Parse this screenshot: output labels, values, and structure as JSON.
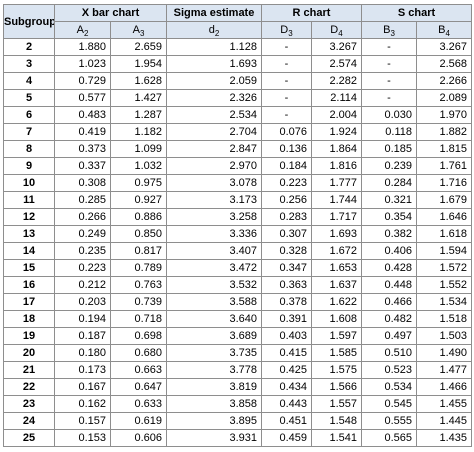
{
  "header": {
    "subgroup": "Subgroup",
    "groups": [
      {
        "label": "X bar chart",
        "span": 2
      },
      {
        "label": "Sigma estimate",
        "span": 1
      },
      {
        "label": "R chart",
        "span": 2
      },
      {
        "label": "S chart",
        "span": 2
      }
    ],
    "constants": [
      {
        "letter": "A",
        "sub": "2"
      },
      {
        "letter": "A",
        "sub": "3"
      },
      {
        "letter": "d",
        "sub": "2"
      },
      {
        "letter": "D",
        "sub": "3"
      },
      {
        "letter": "D",
        "sub": "4"
      },
      {
        "letter": "B",
        "sub": "3"
      },
      {
        "letter": "B",
        "sub": "4"
      }
    ]
  },
  "rows": [
    [
      "2",
      "1.880",
      "2.659",
      "1.128",
      "-",
      "3.267",
      "-",
      "3.267"
    ],
    [
      "3",
      "1.023",
      "1.954",
      "1.693",
      "-",
      "2.574",
      "-",
      "2.568"
    ],
    [
      "4",
      "0.729",
      "1.628",
      "2.059",
      "-",
      "2.282",
      "-",
      "2.266"
    ],
    [
      "5",
      "0.577",
      "1.427",
      "2.326",
      "-",
      "2.114",
      "-",
      "2.089"
    ],
    [
      "6",
      "0.483",
      "1.287",
      "2.534",
      "-",
      "2.004",
      "0.030",
      "1.970"
    ],
    [
      "7",
      "0.419",
      "1.182",
      "2.704",
      "0.076",
      "1.924",
      "0.118",
      "1.882"
    ],
    [
      "8",
      "0.373",
      "1.099",
      "2.847",
      "0.136",
      "1.864",
      "0.185",
      "1.815"
    ],
    [
      "9",
      "0.337",
      "1.032",
      "2.970",
      "0.184",
      "1.816",
      "0.239",
      "1.761"
    ],
    [
      "10",
      "0.308",
      "0.975",
      "3.078",
      "0.223",
      "1.777",
      "0.284",
      "1.716"
    ],
    [
      "11",
      "0.285",
      "0.927",
      "3.173",
      "0.256",
      "1.744",
      "0.321",
      "1.679"
    ],
    [
      "12",
      "0.266",
      "0.886",
      "3.258",
      "0.283",
      "1.717",
      "0.354",
      "1.646"
    ],
    [
      "13",
      "0.249",
      "0.850",
      "3.336",
      "0.307",
      "1.693",
      "0.382",
      "1.618"
    ],
    [
      "14",
      "0.235",
      "0.817",
      "3.407",
      "0.328",
      "1.672",
      "0.406",
      "1.594"
    ],
    [
      "15",
      "0.223",
      "0.789",
      "3.472",
      "0.347",
      "1.653",
      "0.428",
      "1.572"
    ],
    [
      "16",
      "0.212",
      "0.763",
      "3.532",
      "0.363",
      "1.637",
      "0.448",
      "1.552"
    ],
    [
      "17",
      "0.203",
      "0.739",
      "3.588",
      "0.378",
      "1.622",
      "0.466",
      "1.534"
    ],
    [
      "18",
      "0.194",
      "0.718",
      "3.640",
      "0.391",
      "1.608",
      "0.482",
      "1.518"
    ],
    [
      "19",
      "0.187",
      "0.698",
      "3.689",
      "0.403",
      "1.597",
      "0.497",
      "1.503"
    ],
    [
      "20",
      "0.180",
      "0.680",
      "3.735",
      "0.415",
      "1.585",
      "0.510",
      "1.490"
    ],
    [
      "21",
      "0.173",
      "0.663",
      "3.778",
      "0.425",
      "1.575",
      "0.523",
      "1.477"
    ],
    [
      "22",
      "0.167",
      "0.647",
      "3.819",
      "0.434",
      "1.566",
      "0.534",
      "1.466"
    ],
    [
      "23",
      "0.162",
      "0.633",
      "3.858",
      "0.443",
      "1.557",
      "0.545",
      "1.455"
    ],
    [
      "24",
      "0.157",
      "0.619",
      "3.895",
      "0.451",
      "1.548",
      "0.555",
      "1.445"
    ],
    [
      "25",
      "0.153",
      "0.606",
      "3.931",
      "0.459",
      "1.541",
      "0.565",
      "1.435"
    ]
  ],
  "colors": {
    "header_bg": "#dbe5f1",
    "border": "#8e8e8e"
  }
}
